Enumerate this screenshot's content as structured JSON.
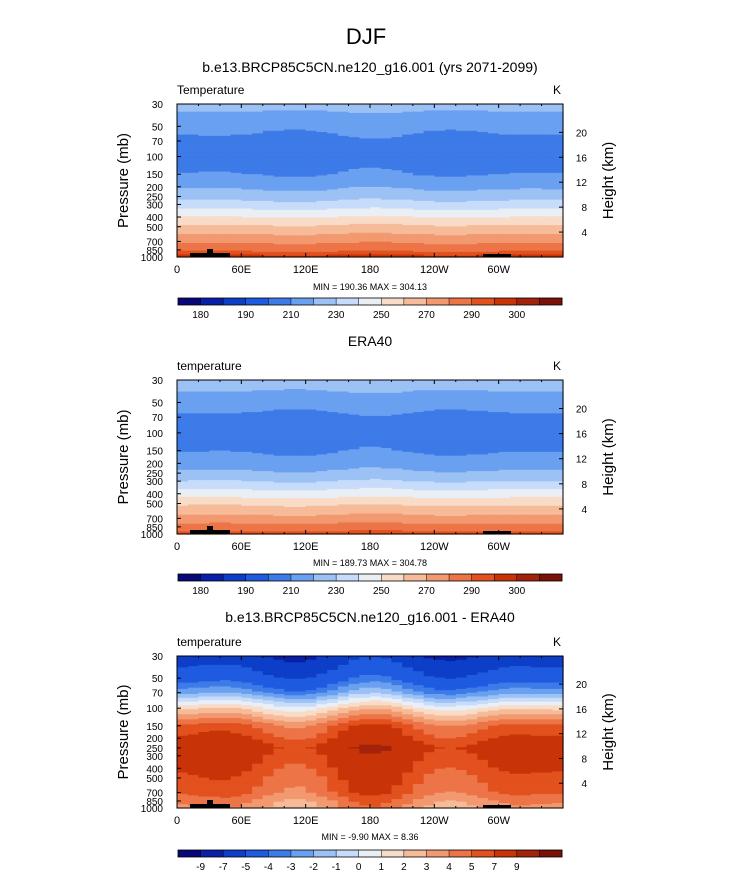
{
  "figure": {
    "season": "DJF"
  },
  "colors": {
    "abs_levels": [
      "#08087a",
      "#0a1fa8",
      "#0d3ec8",
      "#1e5be0",
      "#3d7be8",
      "#6aa0f0",
      "#9cc1f5",
      "#c6dcfa",
      "#eaeef5",
      "#f8dcc8",
      "#f6bb98",
      "#f29970",
      "#ec7446",
      "#e2511e",
      "#c83408",
      "#a3230a",
      "#7a120a"
    ],
    "diff_levels": [
      "#08087a",
      "#0a1fa8",
      "#0d3ec8",
      "#1e5be0",
      "#3d7be8",
      "#6aa0f0",
      "#9cc1f5",
      "#c6dcfa",
      "#eaeef5",
      "#f8dcc8",
      "#f6bb98",
      "#f29970",
      "#ec7446",
      "#e2511e",
      "#c83408",
      "#a3230a",
      "#7a120a"
    ],
    "land": "#000000"
  },
  "chart_data": [
    {
      "type": "heatmap",
      "title": "b.e13.BRCP85C5CN.ne120_g16.001 (yrs 2071-2099)",
      "left_label": "Temperature",
      "right_label": "K",
      "ylabel": "Pressure (mb)",
      "ylabel_right": "Height (km)",
      "x_ticks": [
        "0",
        "60E",
        "120E",
        "180",
        "120W",
        "60W"
      ],
      "y_ticks": [
        "30",
        "50",
        "70",
        "100",
        "150",
        "200",
        "250",
        "300",
        "400",
        "500",
        "700",
        "850",
        "1000"
      ],
      "height_ticks": [
        "20",
        "16",
        "12",
        "8",
        "4"
      ],
      "ylim": [
        1000,
        30
      ],
      "xlim": [
        0,
        360
      ],
      "stats": "MIN = 190.36  MAX = 304.13",
      "colorbar_labels": [
        "180",
        "190",
        "210",
        "230",
        "250",
        "270",
        "290",
        "300"
      ],
      "profile": {
        "pressure": [
          30,
          50,
          70,
          100,
          150,
          200,
          250,
          300,
          400,
          500,
          700,
          850,
          1000
        ],
        "temperature": [
          224,
          212,
          208,
          205,
          210,
          218,
          226,
          234,
          250,
          262,
          278,
          288,
          298
        ]
      }
    },
    {
      "type": "heatmap",
      "title": "ERA40",
      "left_label": "temperature",
      "right_label": "K",
      "ylabel": "Pressure (mb)",
      "ylabel_right": "Height (km)",
      "x_ticks": [
        "0",
        "60E",
        "120E",
        "180",
        "120W",
        "60W"
      ],
      "y_ticks": [
        "30",
        "50",
        "70",
        "100",
        "150",
        "200",
        "250",
        "300",
        "400",
        "500",
        "700",
        "850",
        "1000"
      ],
      "height_ticks": [
        "20",
        "16",
        "12",
        "8",
        "4"
      ],
      "ylim": [
        1000,
        30
      ],
      "xlim": [
        0,
        360
      ],
      "stats": "MIN = 189.73  MAX = 304.78",
      "colorbar_labels": [
        "180",
        "190",
        "210",
        "230",
        "250",
        "270",
        "290",
        "300"
      ],
      "profile": {
        "pressure": [
          30,
          50,
          70,
          100,
          150,
          200,
          250,
          300,
          400,
          500,
          700,
          850,
          1000
        ],
        "temperature": [
          226,
          214,
          208,
          205,
          209,
          215,
          222,
          230,
          245,
          258,
          274,
          284,
          294
        ]
      }
    },
    {
      "type": "heatmap",
      "title": "b.e13.BRCP85C5CN.ne120_g16.001 - ERA40",
      "left_label": "temperature",
      "right_label": "K",
      "ylabel": "Pressure (mb)",
      "ylabel_right": "Height (km)",
      "x_ticks": [
        "0",
        "60E",
        "120E",
        "180",
        "120W",
        "60W"
      ],
      "y_ticks": [
        "30",
        "50",
        "70",
        "100",
        "150",
        "200",
        "250",
        "300",
        "400",
        "500",
        "700",
        "850",
        "1000"
      ],
      "height_ticks": [
        "20",
        "16",
        "12",
        "8",
        "4"
      ],
      "ylim": [
        1000,
        30
      ],
      "xlim": [
        0,
        360
      ],
      "stats": "MIN = -9.90  MAX =  8.36",
      "colorbar_labels": [
        "-9",
        "-7",
        "-5",
        "-4",
        "-3",
        "-2",
        "-1",
        "0",
        "1",
        "2",
        "3",
        "4",
        "5",
        "7",
        "9"
      ],
      "profile": {
        "pressure": [
          30,
          50,
          70,
          100,
          150,
          200,
          250,
          300,
          400,
          500,
          700,
          850,
          1000
        ],
        "difference": [
          -8.5,
          -6.0,
          -3.5,
          0.5,
          4.0,
          5.0,
          6.0,
          5.5,
          5.0,
          4.5,
          4.0,
          3.0,
          2.5
        ]
      }
    }
  ]
}
